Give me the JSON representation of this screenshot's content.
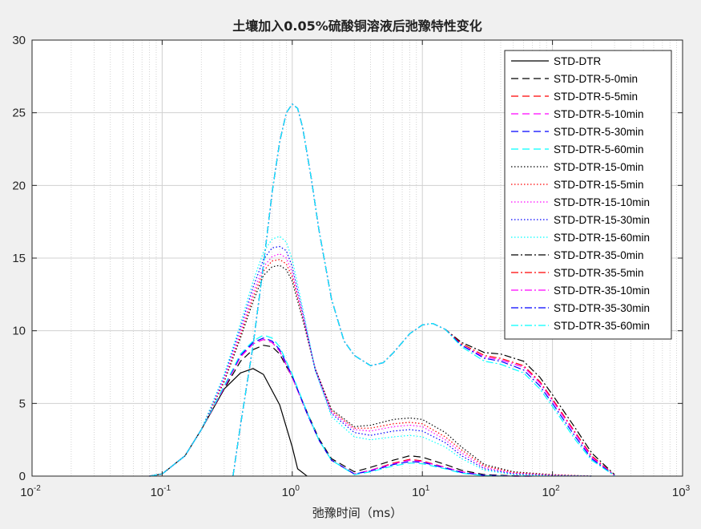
{
  "chart_data": {
    "type": "line",
    "title": "土壤加入0.05%硫酸铜溶液后弛豫特性变化",
    "xlabel": "弛豫时间（ms）",
    "ylabel": "",
    "xscale": "log",
    "xlim": [
      0.01,
      1000
    ],
    "ylim": [
      0,
      30
    ],
    "grid": true,
    "legend_position": "top-right",
    "x_ticks": [
      {
        "base": "10",
        "exp": "-2",
        "value": 0.01
      },
      {
        "base": "10",
        "exp": "-1",
        "value": 0.1
      },
      {
        "base": "10",
        "exp": "0",
        "value": 1
      },
      {
        "base": "10",
        "exp": "1",
        "value": 10
      },
      {
        "base": "10",
        "exp": "2",
        "value": 100
      },
      {
        "base": "10",
        "exp": "3",
        "value": 1000
      }
    ],
    "y_ticks": [
      "0",
      "5",
      "10",
      "15",
      "20",
      "25",
      "30"
    ],
    "series": [
      {
        "name": "STD-DTR",
        "color": "#000000",
        "dash": "solid",
        "x": [
          0.08,
          0.1,
          0.15,
          0.2,
          0.3,
          0.4,
          0.5,
          0.6,
          0.8,
          1.0,
          1.1,
          1.3
        ],
        "y": [
          0.0,
          0.15,
          1.4,
          3.2,
          6.0,
          7.1,
          7.4,
          7.0,
          4.9,
          2.0,
          0.5,
          0.0
        ]
      },
      {
        "name": "STD-DTR-5-0min",
        "color": "#000000",
        "dash": "dashed",
        "x": [
          0.08,
          0.1,
          0.15,
          0.2,
          0.3,
          0.4,
          0.5,
          0.6,
          0.7,
          0.8,
          1.0,
          1.3,
          1.6,
          2.0,
          3.0,
          4.0,
          6.0,
          8.0,
          10.0,
          15.0,
          20.0,
          30.0,
          50.0,
          70.0
        ],
        "y": [
          0.0,
          0.15,
          1.4,
          3.2,
          6.0,
          7.9,
          8.7,
          9.0,
          8.9,
          8.4,
          6.8,
          4.4,
          2.6,
          1.2,
          0.3,
          0.6,
          1.1,
          1.4,
          1.3,
          0.8,
          0.4,
          0.1,
          0.02,
          0.0
        ]
      },
      {
        "name": "STD-DTR-5-5min",
        "color": "#ff0000",
        "dash": "dashed",
        "x": [
          0.08,
          0.1,
          0.15,
          0.2,
          0.3,
          0.4,
          0.5,
          0.6,
          0.7,
          0.8,
          1.0,
          1.3,
          1.6,
          2.0,
          3.0,
          4.0,
          6.0,
          8.0,
          10.0,
          15.0,
          20.0,
          30.0,
          50.0,
          70.0
        ],
        "y": [
          0.0,
          0.15,
          1.4,
          3.2,
          6.1,
          8.2,
          9.1,
          9.4,
          9.2,
          8.6,
          6.8,
          4.3,
          2.5,
          1.1,
          0.15,
          0.4,
          0.9,
          1.15,
          1.05,
          0.6,
          0.3,
          0.05,
          0.0,
          0.0
        ]
      },
      {
        "name": "STD-DTR-5-10min",
        "color": "#ff00ff",
        "dash": "dashed",
        "x": [
          0.08,
          0.1,
          0.15,
          0.2,
          0.3,
          0.4,
          0.5,
          0.6,
          0.7,
          0.8,
          1.0,
          1.3,
          1.6,
          2.0,
          3.0,
          4.0,
          6.0,
          8.0,
          10.0,
          15.0,
          20.0,
          30.0,
          50.0,
          70.0
        ],
        "y": [
          0.0,
          0.15,
          1.4,
          3.2,
          6.1,
          8.2,
          9.1,
          9.4,
          9.2,
          8.6,
          6.8,
          4.3,
          2.5,
          1.1,
          0.15,
          0.4,
          0.85,
          1.1,
          1.0,
          0.6,
          0.3,
          0.05,
          0.0,
          0.0
        ]
      },
      {
        "name": "STD-DTR-5-30min",
        "color": "#0000ff",
        "dash": "dashed",
        "x": [
          0.08,
          0.1,
          0.15,
          0.2,
          0.3,
          0.4,
          0.5,
          0.6,
          0.7,
          0.8,
          1.0,
          1.3,
          1.6,
          2.0,
          3.0,
          4.0,
          6.0,
          8.0,
          10.0,
          15.0,
          20.0,
          30.0,
          50.0,
          70.0
        ],
        "y": [
          0.0,
          0.15,
          1.4,
          3.2,
          6.2,
          8.3,
          9.2,
          9.5,
          9.3,
          8.7,
          6.9,
          4.3,
          2.5,
          1.1,
          0.15,
          0.35,
          0.8,
          1.0,
          0.95,
          0.55,
          0.25,
          0.05,
          0.0,
          0.0
        ]
      },
      {
        "name": "STD-DTR-5-60min",
        "color": "#00ffff",
        "dash": "dashed",
        "x": [
          0.08,
          0.1,
          0.15,
          0.2,
          0.3,
          0.4,
          0.5,
          0.6,
          0.7,
          0.8,
          1.0,
          1.3,
          1.6,
          2.0,
          3.0,
          4.0,
          6.0,
          8.0,
          10.0,
          15.0,
          20.0,
          30.0,
          50.0,
          70.0
        ],
        "y": [
          0.0,
          0.15,
          1.4,
          3.2,
          6.2,
          8.4,
          9.3,
          9.7,
          9.5,
          8.9,
          7.0,
          4.4,
          2.5,
          1.1,
          0.1,
          0.3,
          0.7,
          0.9,
          0.85,
          0.5,
          0.2,
          0.03,
          0.0,
          0.0
        ]
      },
      {
        "name": "STD-DTR-15-0min",
        "color": "#000000",
        "dash": "dotted",
        "x": [
          0.08,
          0.1,
          0.15,
          0.2,
          0.3,
          0.4,
          0.5,
          0.6,
          0.7,
          0.8,
          0.9,
          1.0,
          1.2,
          1.5,
          2.0,
          3.0,
          4.0,
          6.0,
          8.0,
          10.0,
          15.0,
          20.0,
          30.0,
          50.0,
          100.0,
          200.0
        ],
        "y": [
          0.0,
          0.15,
          1.4,
          3.2,
          6.5,
          9.5,
          12.0,
          13.8,
          14.4,
          14.5,
          14.2,
          13.4,
          10.8,
          7.4,
          4.6,
          3.4,
          3.5,
          3.9,
          4.0,
          3.9,
          3.0,
          2.0,
          0.8,
          0.3,
          0.1,
          0.0
        ]
      },
      {
        "name": "STD-DTR-15-5min",
        "color": "#ff0000",
        "dash": "dotted",
        "x": [
          0.08,
          0.1,
          0.15,
          0.2,
          0.3,
          0.4,
          0.5,
          0.6,
          0.7,
          0.8,
          0.9,
          1.0,
          1.2,
          1.5,
          2.0,
          3.0,
          4.0,
          6.0,
          8.0,
          10.0,
          15.0,
          20.0,
          30.0,
          50.0,
          100.0,
          200.0
        ],
        "y": [
          0.0,
          0.15,
          1.4,
          3.2,
          6.6,
          9.7,
          12.3,
          14.1,
          14.8,
          14.9,
          14.6,
          13.7,
          11.0,
          7.4,
          4.5,
          3.3,
          3.3,
          3.6,
          3.7,
          3.6,
          2.7,
          1.8,
          0.7,
          0.25,
          0.08,
          0.0
        ]
      },
      {
        "name": "STD-DTR-15-10min",
        "color": "#ff00ff",
        "dash": "dotted",
        "x": [
          0.08,
          0.1,
          0.15,
          0.2,
          0.3,
          0.4,
          0.5,
          0.6,
          0.7,
          0.8,
          0.9,
          1.0,
          1.2,
          1.5,
          2.0,
          3.0,
          4.0,
          6.0,
          8.0,
          10.0,
          15.0,
          20.0,
          30.0,
          50.0,
          100.0,
          200.0
        ],
        "y": [
          0.0,
          0.15,
          1.4,
          3.2,
          6.7,
          9.9,
          12.6,
          14.4,
          15.1,
          15.3,
          15.0,
          14.0,
          11.1,
          7.4,
          4.4,
          3.2,
          3.1,
          3.4,
          3.5,
          3.4,
          2.5,
          1.6,
          0.6,
          0.2,
          0.06,
          0.0
        ]
      },
      {
        "name": "STD-DTR-15-30min",
        "color": "#0000ff",
        "dash": "dotted",
        "x": [
          0.08,
          0.1,
          0.15,
          0.2,
          0.3,
          0.4,
          0.5,
          0.6,
          0.7,
          0.8,
          0.9,
          1.0,
          1.2,
          1.5,
          2.0,
          3.0,
          4.0,
          6.0,
          8.0,
          10.0,
          15.0,
          20.0,
          30.0,
          50.0,
          100.0,
          200.0
        ],
        "y": [
          0.0,
          0.15,
          1.4,
          3.2,
          6.9,
          10.2,
          13.0,
          14.9,
          15.7,
          15.8,
          15.5,
          14.4,
          11.3,
          7.3,
          4.3,
          3.0,
          2.8,
          3.1,
          3.2,
          3.1,
          2.3,
          1.4,
          0.5,
          0.15,
          0.04,
          0.0
        ]
      },
      {
        "name": "STD-DTR-15-60min",
        "color": "#00ffff",
        "dash": "dotted",
        "x": [
          0.08,
          0.1,
          0.15,
          0.2,
          0.3,
          0.4,
          0.5,
          0.6,
          0.7,
          0.8,
          0.9,
          1.0,
          1.2,
          1.5,
          2.0,
          3.0,
          4.0,
          6.0,
          8.0,
          10.0,
          15.0,
          20.0,
          30.0,
          50.0,
          100.0,
          200.0
        ],
        "y": [
          0.0,
          0.15,
          1.4,
          3.2,
          7.0,
          10.5,
          13.4,
          15.4,
          16.3,
          16.5,
          16.1,
          14.9,
          11.6,
          7.3,
          4.1,
          2.7,
          2.5,
          2.7,
          2.8,
          2.7,
          2.0,
          1.2,
          0.4,
          0.1,
          0.02,
          0.0
        ]
      },
      {
        "name": "STD-DTR-35-0min",
        "color": "#000000",
        "dash": "dashdot",
        "x": [
          0.35,
          0.4,
          0.5,
          0.6,
          0.7,
          0.8,
          0.9,
          1.0,
          1.1,
          1.2,
          1.4,
          1.6,
          2.0,
          2.5,
          3.0,
          4.0,
          5.0,
          6.0,
          8.0,
          10.0,
          12.0,
          15.0,
          20.0,
          30.0,
          40.0,
          60.0,
          80.0,
          100.0,
          150.0,
          200.0,
          300.0
        ],
        "y": [
          0.0,
          3.5,
          9.0,
          14.5,
          19.5,
          23.0,
          25.0,
          25.6,
          25.3,
          24.0,
          20.5,
          17.0,
          12.2,
          9.3,
          8.3,
          7.6,
          7.8,
          8.5,
          9.8,
          10.4,
          10.5,
          10.1,
          9.2,
          8.5,
          8.4,
          7.9,
          6.8,
          5.6,
          3.3,
          1.6,
          0.1
        ]
      },
      {
        "name": "STD-DTR-35-5min",
        "color": "#ff0000",
        "dash": "dashdot",
        "x": [
          0.35,
          0.4,
          0.5,
          0.6,
          0.7,
          0.8,
          0.9,
          1.0,
          1.1,
          1.2,
          1.4,
          1.6,
          2.0,
          2.5,
          3.0,
          4.0,
          5.0,
          6.0,
          8.0,
          10.0,
          12.0,
          15.0,
          20.0,
          30.0,
          40.0,
          60.0,
          80.0,
          100.0,
          150.0,
          200.0,
          300.0
        ],
        "y": [
          0.0,
          3.5,
          9.0,
          14.5,
          19.5,
          23.0,
          25.0,
          25.6,
          25.3,
          24.0,
          20.5,
          17.0,
          12.2,
          9.3,
          8.3,
          7.6,
          7.8,
          8.5,
          9.8,
          10.4,
          10.5,
          10.1,
          9.1,
          8.3,
          8.1,
          7.6,
          6.5,
          5.3,
          3.0,
          1.4,
          0.05
        ]
      },
      {
        "name": "STD-DTR-35-10min",
        "color": "#ff00ff",
        "dash": "dashdot",
        "x": [
          0.35,
          0.4,
          0.5,
          0.6,
          0.7,
          0.8,
          0.9,
          1.0,
          1.1,
          1.2,
          1.4,
          1.6,
          2.0,
          2.5,
          3.0,
          4.0,
          5.0,
          6.0,
          8.0,
          10.0,
          12.0,
          15.0,
          20.0,
          30.0,
          40.0,
          60.0,
          80.0,
          100.0,
          150.0,
          200.0,
          300.0
        ],
        "y": [
          0.0,
          3.5,
          9.0,
          14.5,
          19.5,
          23.0,
          25.0,
          25.6,
          25.3,
          24.0,
          20.5,
          17.0,
          12.2,
          9.3,
          8.3,
          7.6,
          7.8,
          8.5,
          9.8,
          10.4,
          10.5,
          10.1,
          9.0,
          8.2,
          8.0,
          7.5,
          6.4,
          5.2,
          2.9,
          1.3,
          0.05
        ]
      },
      {
        "name": "STD-DTR-35-30min",
        "color": "#0000ff",
        "dash": "dashdot",
        "x": [
          0.35,
          0.4,
          0.5,
          0.6,
          0.7,
          0.8,
          0.9,
          1.0,
          1.1,
          1.2,
          1.4,
          1.6,
          2.0,
          2.5,
          3.0,
          4.0,
          5.0,
          6.0,
          8.0,
          10.0,
          12.0,
          15.0,
          20.0,
          30.0,
          40.0,
          60.0,
          80.0,
          100.0,
          150.0,
          200.0,
          300.0
        ],
        "y": [
          0.0,
          3.5,
          9.0,
          14.5,
          19.5,
          23.0,
          25.0,
          25.6,
          25.3,
          24.0,
          20.5,
          17.0,
          12.2,
          9.3,
          8.3,
          7.6,
          7.8,
          8.5,
          9.8,
          10.4,
          10.5,
          10.1,
          9.0,
          8.1,
          7.9,
          7.3,
          6.2,
          5.0,
          2.7,
          1.2,
          0.03
        ]
      },
      {
        "name": "STD-DTR-35-60min",
        "color": "#00ffff",
        "dash": "dashdot",
        "x": [
          0.35,
          0.4,
          0.5,
          0.6,
          0.7,
          0.8,
          0.9,
          1.0,
          1.1,
          1.2,
          1.4,
          1.6,
          2.0,
          2.5,
          3.0,
          4.0,
          5.0,
          6.0,
          8.0,
          10.0,
          12.0,
          15.0,
          20.0,
          30.0,
          40.0,
          60.0,
          80.0,
          100.0,
          150.0,
          200.0,
          300.0
        ],
        "y": [
          0.0,
          3.5,
          9.0,
          14.5,
          19.5,
          23.0,
          25.0,
          25.6,
          25.3,
          24.0,
          20.5,
          17.0,
          12.2,
          9.3,
          8.3,
          7.6,
          7.8,
          8.5,
          9.8,
          10.4,
          10.5,
          10.1,
          8.9,
          7.9,
          7.7,
          7.1,
          6.0,
          4.8,
          2.5,
          1.1,
          0.02
        ]
      }
    ]
  }
}
